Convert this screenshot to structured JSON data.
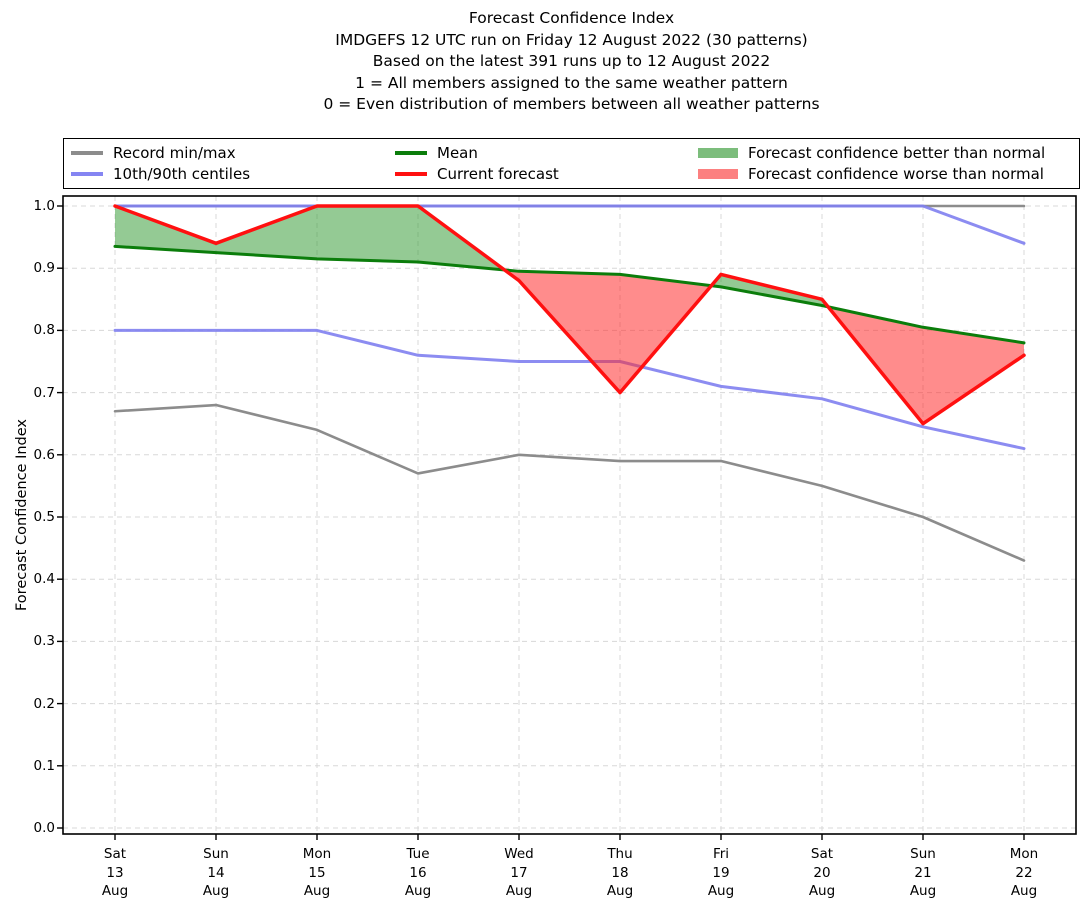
{
  "figure": {
    "titles": [
      "Forecast Confidence Index",
      "IMDGEFS 12 UTC run on Friday 12 August 2022 (30 patterns)",
      "Based on the latest 391 runs up to 12 August 2022",
      "1 = All members assigned to the same weather pattern",
      "0 = Even distribution of members between all weather patterns"
    ]
  },
  "legend": {
    "items": [
      {
        "label": "Record min/max",
        "swatch": "line",
        "color": "#8c8c8c"
      },
      {
        "label": "10th/90th centiles",
        "swatch": "line",
        "color": "#8585f2"
      },
      {
        "label": "Mean",
        "swatch": "line",
        "color": "#0b7d0b"
      },
      {
        "label": "Current forecast",
        "swatch": "line",
        "color": "#ff1010"
      },
      {
        "label": "Forecast confidence better than normal",
        "swatch": "patch",
        "color": "#7cbd7c"
      },
      {
        "label": "Forecast confidence worse than normal",
        "swatch": "patch",
        "color": "#fc8080"
      }
    ]
  },
  "chart_data": {
    "type": "line",
    "title": "Forecast Confidence Index",
    "xlabel": "",
    "ylabel": "Forecast Confidence Index",
    "ylim": [
      0.0,
      1.0
    ],
    "grid": true,
    "legend_position": "top",
    "y_ticks": [
      0.0,
      0.1,
      0.2,
      0.3,
      0.4,
      0.5,
      0.6,
      0.7,
      0.8,
      0.9,
      1.0
    ],
    "categories": [
      "Sat 13 Aug",
      "Sun 14 Aug",
      "Mon 15 Aug",
      "Tue 16 Aug",
      "Wed 17 Aug",
      "Thu 18 Aug",
      "Fri 19 Aug",
      "Sat 20 Aug",
      "Sun 21 Aug",
      "Mon 22 Aug"
    ],
    "x_ticks": [
      [
        "Sat",
        "13",
        "Aug"
      ],
      [
        "Sun",
        "14",
        "Aug"
      ],
      [
        "Mon",
        "15",
        "Aug"
      ],
      [
        "Tue",
        "16",
        "Aug"
      ],
      [
        "Wed",
        "17",
        "Aug"
      ],
      [
        "Thu",
        "18",
        "Aug"
      ],
      [
        "Fri",
        "19",
        "Aug"
      ],
      [
        "Sat",
        "20",
        "Aug"
      ],
      [
        "Sun",
        "21",
        "Aug"
      ],
      [
        "Mon",
        "22",
        "Aug"
      ]
    ],
    "series": [
      {
        "name": "Record max",
        "role": "record-max",
        "color": "#8c8c8c",
        "values": [
          1.0,
          1.0,
          1.0,
          1.0,
          1.0,
          1.0,
          1.0,
          1.0,
          1.0,
          1.0
        ]
      },
      {
        "name": "Record min",
        "role": "record-min",
        "color": "#8c8c8c",
        "values": [
          0.67,
          0.68,
          0.64,
          0.57,
          0.6,
          0.59,
          0.59,
          0.55,
          0.5,
          0.43
        ]
      },
      {
        "name": "90th centile",
        "role": "p90",
        "color": "#8080f0",
        "values": [
          1.0,
          1.0,
          1.0,
          1.0,
          1.0,
          1.0,
          1.0,
          1.0,
          1.0,
          0.94
        ]
      },
      {
        "name": "10th centile",
        "role": "p10",
        "color": "#8080f0",
        "values": [
          0.8,
          0.8,
          0.8,
          0.76,
          0.75,
          0.75,
          0.71,
          0.69,
          0.645,
          0.61
        ]
      },
      {
        "name": "Mean",
        "role": "mean",
        "color": "#0b7d0b",
        "values": [
          0.935,
          0.925,
          0.915,
          0.91,
          0.895,
          0.89,
          0.87,
          0.84,
          0.805,
          0.78
        ]
      },
      {
        "name": "Current forecast",
        "role": "current",
        "color": "#ff1010",
        "values": [
          1.0,
          0.94,
          1.0,
          1.0,
          0.88,
          0.7,
          0.89,
          0.85,
          0.65,
          0.76
        ]
      }
    ],
    "fills": [
      {
        "label": "Forecast confidence better than normal",
        "condition": "current_above_mean",
        "color": "rgba(60,158,60,0.55)"
      },
      {
        "label": "Forecast confidence worse than normal",
        "condition": "current_below_mean",
        "color": "rgba(255,46,46,0.55)"
      }
    ]
  }
}
